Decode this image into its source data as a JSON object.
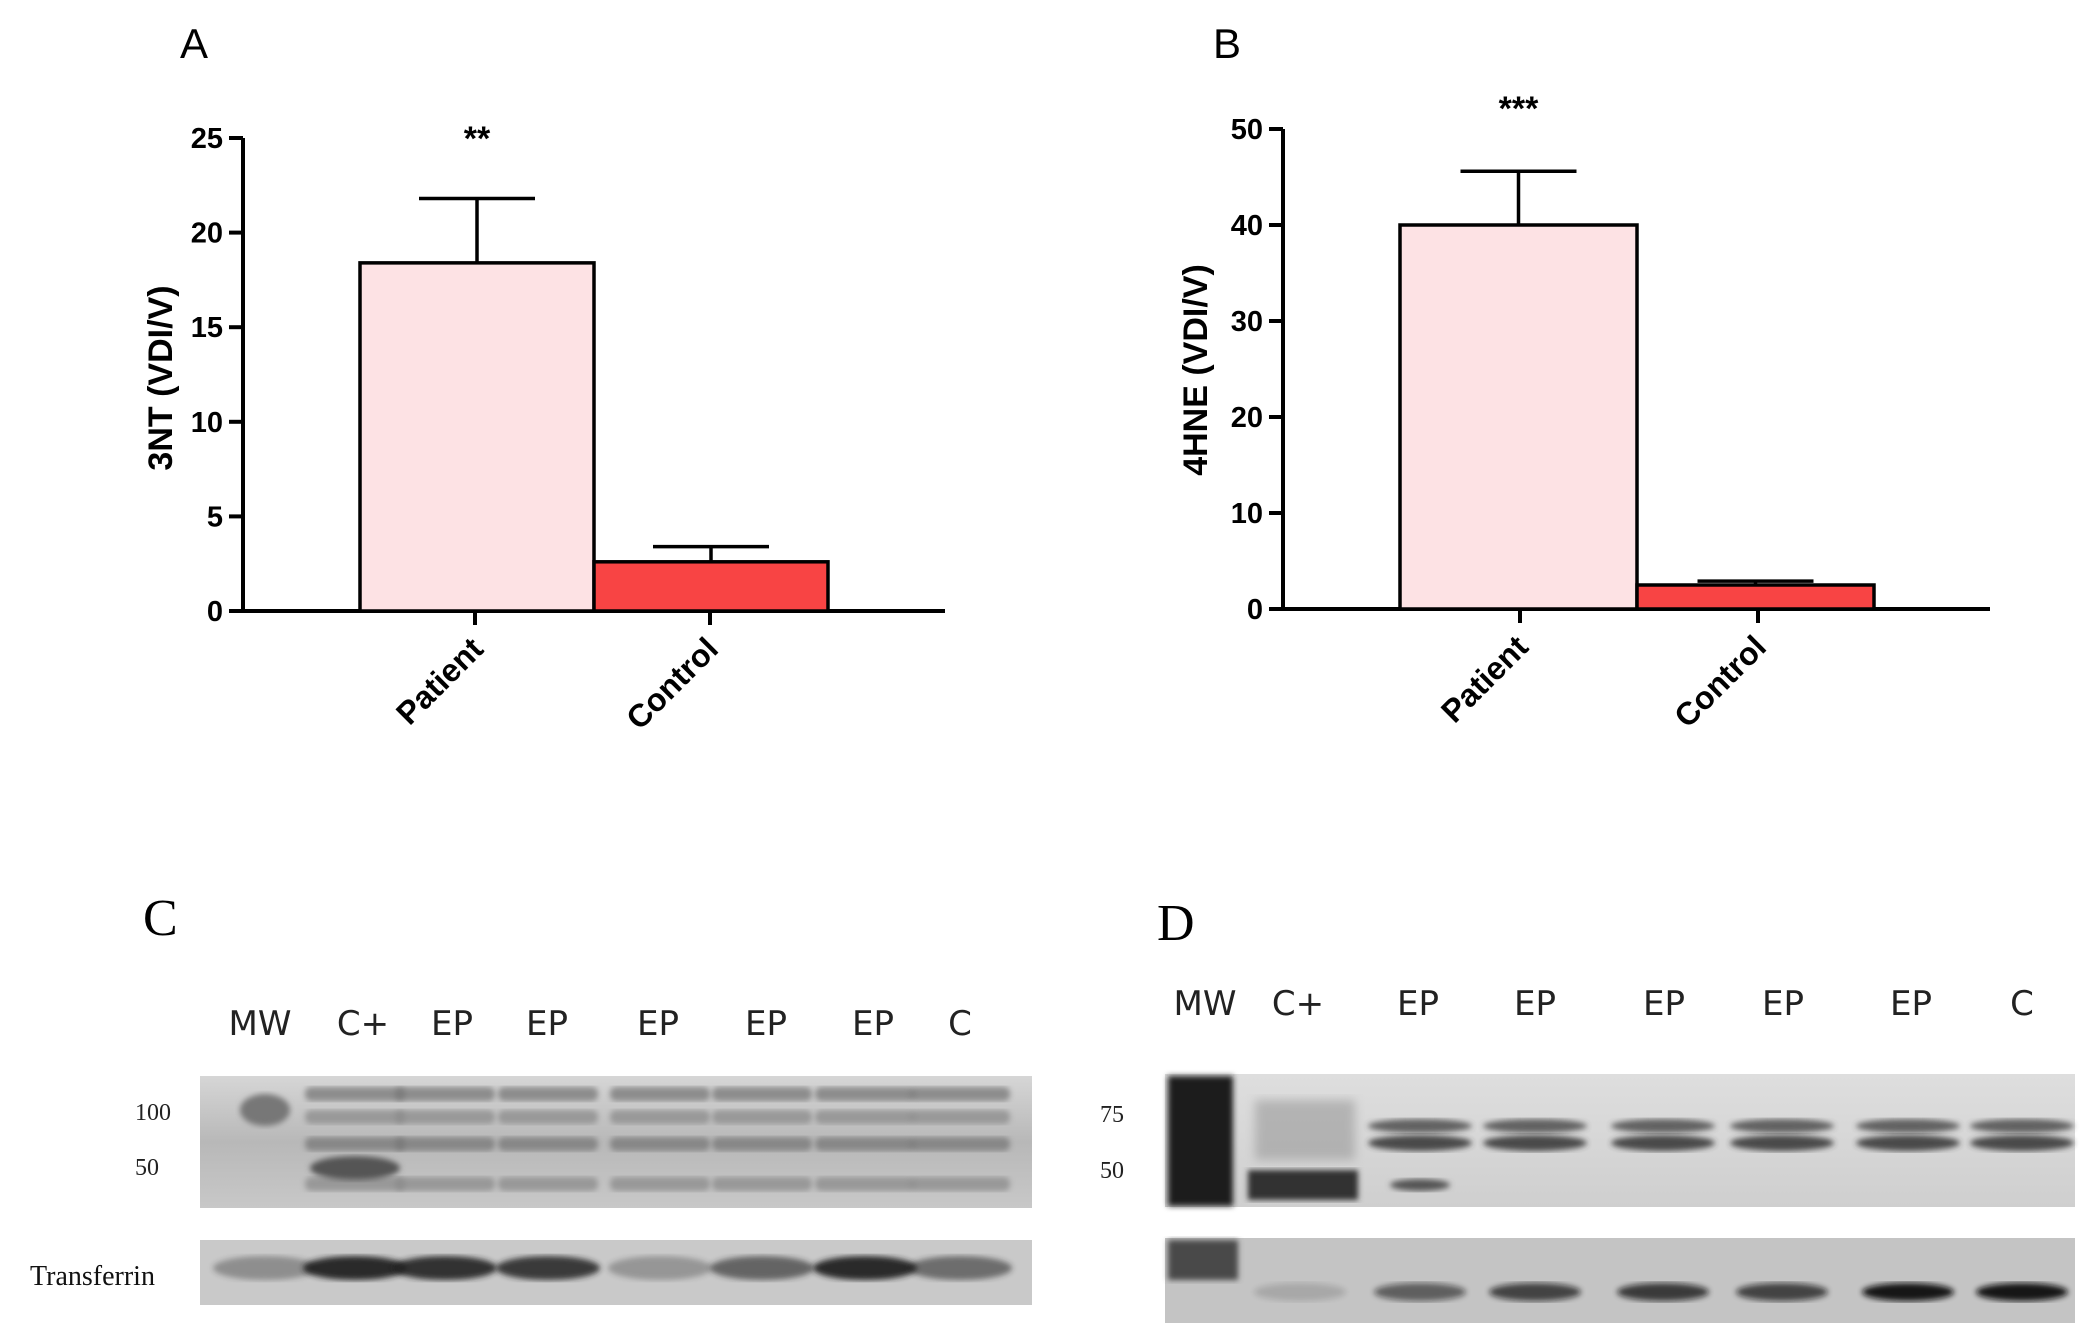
{
  "chart_data": [
    {
      "type": "bar",
      "panel": "A",
      "ylabel": "3NT (VDI/V)",
      "categories": [
        "Patient",
        "Control"
      ],
      "values": [
        18.4,
        2.6
      ],
      "errors": [
        3.4,
        0.8
      ],
      "significance": [
        "**",
        ""
      ],
      "ylim": [
        0,
        25
      ],
      "yticks": [
        "0",
        "5",
        "10",
        "15",
        "20",
        "25"
      ],
      "colors": [
        "#fde2e4",
        "#f84444"
      ]
    },
    {
      "type": "bar",
      "panel": "B",
      "ylabel": "4HNE (VDI/V)",
      "categories": [
        "Patient",
        "Control"
      ],
      "values": [
        40.0,
        2.5
      ],
      "errors": [
        5.6,
        0.4
      ],
      "significance": [
        "***",
        ""
      ],
      "ylim": [
        0,
        50
      ],
      "yticks": [
        "0",
        "10",
        "20",
        "30",
        "40",
        "50"
      ],
      "colors": [
        "#fde2e4",
        "#f84444"
      ]
    }
  ],
  "blots": [
    {
      "panel": "C",
      "lanes": [
        "MW",
        "C+",
        "EP",
        "EP",
        "EP",
        "EP",
        "EP",
        "C"
      ],
      "mw_markers": [
        "100",
        "50"
      ],
      "lower_label": "Transferrin"
    },
    {
      "panel": "D",
      "lanes": [
        "MW",
        "C+",
        "EP",
        "EP",
        "EP",
        "EP",
        "EP",
        "C"
      ],
      "mw_markers": [
        "75",
        "50"
      ]
    }
  ]
}
